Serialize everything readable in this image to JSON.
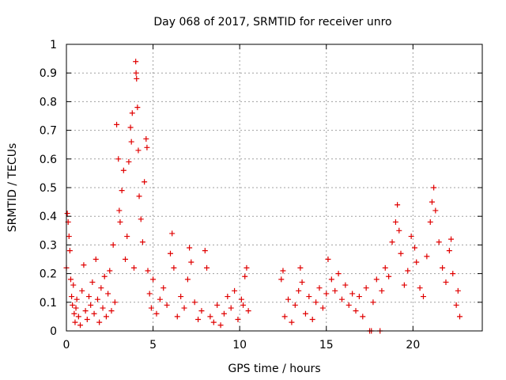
{
  "chart_data": {
    "type": "scatter",
    "title": "Day 068 of 2017, SRMTID for receiver unro",
    "xlabel": "GPS time / hours",
    "ylabel": "SRMTID / TECUs",
    "xlim": [
      0,
      24
    ],
    "ylim": [
      0,
      1
    ],
    "x_ticks": [
      {
        "value": 0,
        "label": "0"
      },
      {
        "value": 5,
        "label": "5"
      },
      {
        "value": 10,
        "label": "10"
      },
      {
        "value": 15,
        "label": "15"
      },
      {
        "value": 20,
        "label": "20"
      }
    ],
    "y_ticks": [
      {
        "value": 0,
        "label": "0"
      },
      {
        "value": 0.1,
        "label": "0.1"
      },
      {
        "value": 0.2,
        "label": "0.2"
      },
      {
        "value": 0.3,
        "label": "0.3"
      },
      {
        "value": 0.4,
        "label": "0.4"
      },
      {
        "value": 0.5,
        "label": "0.5"
      },
      {
        "value": 0.6,
        "label": "0.6"
      },
      {
        "value": 0.7,
        "label": "0.7"
      },
      {
        "value": 0.8,
        "label": "0.8"
      },
      {
        "value": 0.9,
        "label": "0.9"
      },
      {
        "value": 1,
        "label": "1"
      }
    ],
    "grid": true,
    "marker": "+",
    "marker_color": "#e00000",
    "series": [
      {
        "name": "SRMTID",
        "points": [
          [
            0.0,
            0.22
          ],
          [
            0.05,
            0.41
          ],
          [
            0.1,
            0.38
          ],
          [
            0.15,
            0.33
          ],
          [
            0.2,
            0.28
          ],
          [
            0.25,
            0.18
          ],
          [
            0.3,
            0.12
          ],
          [
            0.35,
            0.09
          ],
          [
            0.4,
            0.16
          ],
          [
            0.45,
            0.06
          ],
          [
            0.5,
            0.03
          ],
          [
            0.55,
            0.08
          ],
          [
            0.6,
            0.11
          ],
          [
            0.7,
            0.05
          ],
          [
            0.8,
            0.02
          ],
          [
            0.9,
            0.14
          ],
          [
            1.0,
            0.23
          ],
          [
            1.1,
            0.07
          ],
          [
            1.2,
            0.04
          ],
          [
            1.3,
            0.12
          ],
          [
            1.4,
            0.09
          ],
          [
            1.5,
            0.17
          ],
          [
            1.6,
            0.06
          ],
          [
            1.7,
            0.25
          ],
          [
            1.8,
            0.11
          ],
          [
            1.9,
            0.03
          ],
          [
            2.0,
            0.15
          ],
          [
            2.1,
            0.08
          ],
          [
            2.2,
            0.19
          ],
          [
            2.3,
            0.05
          ],
          [
            2.4,
            0.13
          ],
          [
            2.5,
            0.21
          ],
          [
            2.6,
            0.07
          ],
          [
            2.7,
            0.3
          ],
          [
            2.8,
            0.1
          ],
          [
            2.9,
            0.72
          ],
          [
            3.0,
            0.6
          ],
          [
            3.05,
            0.42
          ],
          [
            3.1,
            0.38
          ],
          [
            3.2,
            0.49
          ],
          [
            3.3,
            0.56
          ],
          [
            3.4,
            0.25
          ],
          [
            3.5,
            0.33
          ],
          [
            3.6,
            0.59
          ],
          [
            3.7,
            0.71
          ],
          [
            3.75,
            0.66
          ],
          [
            3.8,
            0.76
          ],
          [
            3.9,
            0.22
          ],
          [
            4.0,
            0.94
          ],
          [
            4.02,
            0.9
          ],
          [
            4.05,
            0.88
          ],
          [
            4.1,
            0.78
          ],
          [
            4.15,
            0.63
          ],
          [
            4.2,
            0.47
          ],
          [
            4.3,
            0.39
          ],
          [
            4.4,
            0.31
          ],
          [
            4.5,
            0.52
          ],
          [
            4.6,
            0.67
          ],
          [
            4.65,
            0.64
          ],
          [
            4.7,
            0.21
          ],
          [
            4.8,
            0.13
          ],
          [
            4.9,
            0.08
          ],
          [
            5.0,
            0.18
          ],
          [
            5.2,
            0.06
          ],
          [
            5.4,
            0.11
          ],
          [
            5.6,
            0.15
          ],
          [
            5.8,
            0.09
          ],
          [
            6.0,
            0.27
          ],
          [
            6.1,
            0.34
          ],
          [
            6.2,
            0.22
          ],
          [
            6.4,
            0.05
          ],
          [
            6.6,
            0.12
          ],
          [
            6.8,
            0.08
          ],
          [
            7.0,
            0.18
          ],
          [
            7.1,
            0.29
          ],
          [
            7.2,
            0.24
          ],
          [
            7.4,
            0.1
          ],
          [
            7.6,
            0.04
          ],
          [
            7.8,
            0.07
          ],
          [
            8.0,
            0.28
          ],
          [
            8.1,
            0.22
          ],
          [
            8.3,
            0.05
          ],
          [
            8.5,
            0.03
          ],
          [
            8.7,
            0.09
          ],
          [
            8.9,
            0.02
          ],
          [
            9.1,
            0.06
          ],
          [
            9.3,
            0.12
          ],
          [
            9.5,
            0.08
          ],
          [
            9.7,
            0.14
          ],
          [
            9.9,
            0.04
          ],
          [
            10.1,
            0.11
          ],
          [
            10.2,
            0.09
          ],
          [
            10.3,
            0.19
          ],
          [
            10.4,
            0.22
          ],
          [
            10.5,
            0.07
          ],
          [
            12.4,
            0.18
          ],
          [
            12.5,
            0.21
          ],
          [
            12.6,
            0.05
          ],
          [
            12.8,
            0.11
          ],
          [
            13.0,
            0.03
          ],
          [
            13.2,
            0.09
          ],
          [
            13.4,
            0.14
          ],
          [
            13.5,
            0.22
          ],
          [
            13.6,
            0.17
          ],
          [
            13.8,
            0.06
          ],
          [
            14.0,
            0.12
          ],
          [
            14.2,
            0.04
          ],
          [
            14.4,
            0.1
          ],
          [
            14.6,
            0.15
          ],
          [
            14.8,
            0.08
          ],
          [
            15.0,
            0.13
          ],
          [
            15.1,
            0.25
          ],
          [
            15.3,
            0.18
          ],
          [
            15.5,
            0.14
          ],
          [
            15.7,
            0.2
          ],
          [
            15.9,
            0.11
          ],
          [
            16.1,
            0.16
          ],
          [
            16.3,
            0.09
          ],
          [
            16.5,
            0.13
          ],
          [
            16.7,
            0.07
          ],
          [
            16.9,
            0.12
          ],
          [
            17.1,
            0.05
          ],
          [
            17.3,
            0.15
          ],
          [
            17.5,
            0.0
          ],
          [
            17.6,
            0.0
          ],
          [
            17.7,
            0.1
          ],
          [
            17.9,
            0.18
          ],
          [
            18.1,
            0.0
          ],
          [
            18.2,
            0.14
          ],
          [
            18.4,
            0.22
          ],
          [
            18.6,
            0.19
          ],
          [
            18.8,
            0.31
          ],
          [
            19.0,
            0.38
          ],
          [
            19.1,
            0.44
          ],
          [
            19.2,
            0.35
          ],
          [
            19.3,
            0.27
          ],
          [
            19.5,
            0.16
          ],
          [
            19.7,
            0.21
          ],
          [
            19.9,
            0.33
          ],
          [
            20.1,
            0.29
          ],
          [
            20.2,
            0.24
          ],
          [
            20.4,
            0.15
          ],
          [
            20.6,
            0.12
          ],
          [
            20.8,
            0.26
          ],
          [
            21.0,
            0.38
          ],
          [
            21.1,
            0.45
          ],
          [
            21.2,
            0.5
          ],
          [
            21.3,
            0.42
          ],
          [
            21.5,
            0.31
          ],
          [
            21.7,
            0.22
          ],
          [
            21.9,
            0.17
          ],
          [
            22.1,
            0.28
          ],
          [
            22.2,
            0.32
          ],
          [
            22.3,
            0.2
          ],
          [
            22.5,
            0.09
          ],
          [
            22.6,
            0.14
          ],
          [
            22.7,
            0.05
          ]
        ]
      }
    ]
  }
}
